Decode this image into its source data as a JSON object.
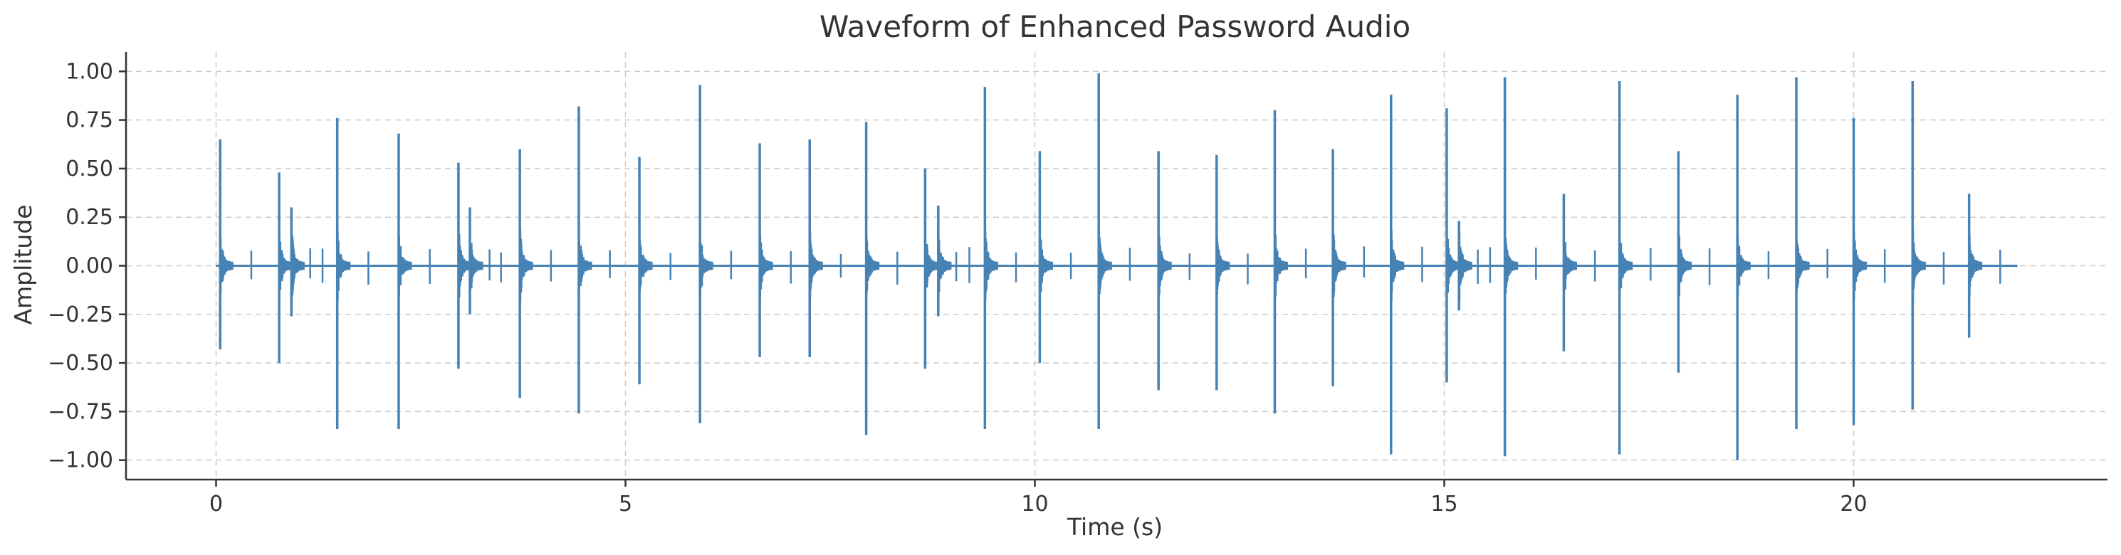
{
  "chart_data": {
    "type": "line",
    "title": "Waveform of Enhanced Password Audio",
    "xlabel": "Time (s)",
    "ylabel": "Amplitude",
    "xlim": [
      -1.1,
      23.1
    ],
    "ylim": [
      -1.1,
      1.1
    ],
    "xticks": [
      0,
      5,
      10,
      15,
      20
    ],
    "yticks": [
      1.0,
      0.75,
      0.5,
      0.25,
      0.0,
      -0.25,
      -0.5,
      -0.75,
      -1.0
    ],
    "xtick_labels": [
      "0",
      "5",
      "10",
      "15",
      "20"
    ],
    "ytick_labels": [
      "1.00",
      "0.75",
      "0.50",
      "0.25",
      "0.00",
      "−0.25",
      "−0.50",
      "−0.75",
      "−1.00"
    ],
    "grid": true,
    "series": [
      {
        "color": "#4682b4",
        "duration": 22,
        "events": [
          {
            "t": 0.05,
            "max": 0.65,
            "min": -0.43
          },
          {
            "t": 0.77,
            "max": 0.48,
            "min": -0.5
          },
          {
            "t": 0.92,
            "max": 0.3,
            "min": -0.26
          },
          {
            "t": 1.48,
            "max": 0.76,
            "min": -0.84
          },
          {
            "t": 2.23,
            "max": 0.68,
            "min": -0.84
          },
          {
            "t": 2.96,
            "max": 0.53,
            "min": -0.53
          },
          {
            "t": 3.1,
            "max": 0.3,
            "min": -0.25
          },
          {
            "t": 3.71,
            "max": 0.6,
            "min": -0.68
          },
          {
            "t": 4.43,
            "max": 0.82,
            "min": -0.76
          },
          {
            "t": 5.17,
            "max": 0.56,
            "min": -0.61
          },
          {
            "t": 5.91,
            "max": 0.93,
            "min": -0.81
          },
          {
            "t": 6.64,
            "max": 0.63,
            "min": -0.47
          },
          {
            "t": 7.25,
            "max": 0.65,
            "min": -0.47
          },
          {
            "t": 7.94,
            "max": 0.74,
            "min": -0.87
          },
          {
            "t": 8.66,
            "max": 0.5,
            "min": -0.53
          },
          {
            "t": 8.82,
            "max": 0.31,
            "min": -0.26
          },
          {
            "t": 9.39,
            "max": 0.92,
            "min": -0.84
          },
          {
            "t": 10.06,
            "max": 0.59,
            "min": -0.5
          },
          {
            "t": 10.78,
            "max": 0.99,
            "min": -0.84
          },
          {
            "t": 11.51,
            "max": 0.59,
            "min": -0.64
          },
          {
            "t": 12.22,
            "max": 0.57,
            "min": -0.64
          },
          {
            "t": 12.93,
            "max": 0.8,
            "min": -0.76
          },
          {
            "t": 13.64,
            "max": 0.6,
            "min": -0.62
          },
          {
            "t": 14.35,
            "max": 0.88,
            "min": -0.97
          },
          {
            "t": 15.03,
            "max": 0.81,
            "min": -0.6
          },
          {
            "t": 15.18,
            "max": 0.23,
            "min": -0.23
          },
          {
            "t": 15.74,
            "max": 0.97,
            "min": -0.98
          },
          {
            "t": 16.46,
            "max": 0.37,
            "min": -0.44
          },
          {
            "t": 17.14,
            "max": 0.95,
            "min": -0.97
          },
          {
            "t": 17.86,
            "max": 0.59,
            "min": -0.55
          },
          {
            "t": 18.58,
            "max": 0.88,
            "min": -1.0
          },
          {
            "t": 19.3,
            "max": 0.97,
            "min": -0.84
          },
          {
            "t": 20.0,
            "max": 0.76,
            "min": -0.82
          },
          {
            "t": 20.72,
            "max": 0.95,
            "min": -0.74
          },
          {
            "t": 21.41,
            "max": 0.37,
            "min": -0.37
          }
        ]
      }
    ]
  }
}
